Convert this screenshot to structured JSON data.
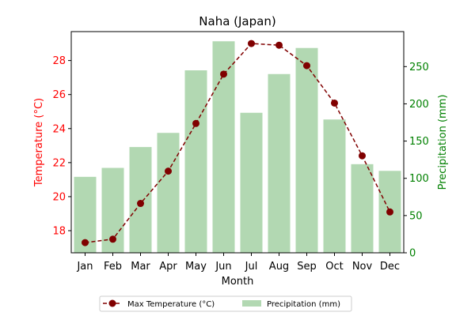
{
  "chart_data": {
    "type": "bar+line",
    "title": "Naha (Japan)",
    "xlabel": "Month",
    "categories": [
      "Jan",
      "Feb",
      "Mar",
      "Apr",
      "May",
      "Jun",
      "Jul",
      "Aug",
      "Sep",
      "Oct",
      "Nov",
      "Dec"
    ],
    "left_axis": {
      "label": "Temperature (°C)",
      "color": "#ff0000",
      "ylim": [
        16.7,
        29.7
      ],
      "ticks": [
        18,
        20,
        22,
        24,
        26,
        28
      ]
    },
    "right_axis": {
      "label": "Precipitation (mm)",
      "color": "#008000",
      "ylim": [
        0,
        297
      ],
      "ticks": [
        0,
        50,
        100,
        150,
        200,
        250
      ]
    },
    "series": [
      {
        "name": "Max Temperature (°C)",
        "kind": "line",
        "axis": "left",
        "color": "#800000",
        "values": [
          17.3,
          17.5,
          19.6,
          21.5,
          24.3,
          27.2,
          29.0,
          28.9,
          27.7,
          25.5,
          22.4,
          19.1
        ]
      },
      {
        "name": "Precipitation (mm)",
        "kind": "bar",
        "axis": "right",
        "color": "#b2d8b2",
        "values": [
          102,
          114,
          142,
          161,
          245,
          284,
          188,
          240,
          275,
          179,
          119,
          110
        ]
      }
    ],
    "legend": "bottom-center",
    "grid": false
  }
}
